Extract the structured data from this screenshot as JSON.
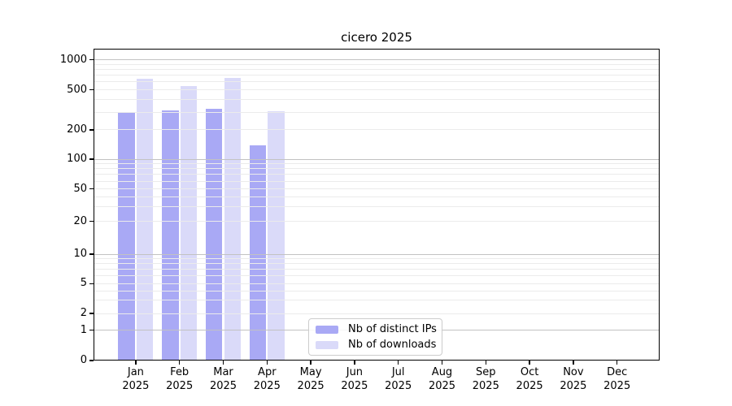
{
  "chart_data": {
    "type": "bar",
    "title": "cicero 2025",
    "categories": [
      "Jan 2025",
      "Feb 2025",
      "Mar 2025",
      "Apr 2025",
      "May 2025",
      "Jun 2025",
      "Jul 2025",
      "Aug 2025",
      "Sep 2025",
      "Oct 2025",
      "Nov 2025",
      "Dec 2025"
    ],
    "series": [
      {
        "name": "Nb of distinct IPs",
        "color": "#a9a9f5",
        "values": [
          300,
          310,
          325,
          138,
          0,
          0,
          0,
          0,
          0,
          0,
          0,
          0
        ]
      },
      {
        "name": "Nb of downloads",
        "color": "#dadaf9",
        "values": [
          650,
          550,
          660,
          305,
          0,
          0,
          0,
          0,
          0,
          0,
          0,
          0
        ]
      }
    ],
    "xlabel": "",
    "ylabel": "",
    "y_ticks": [
      0,
      1,
      2,
      5,
      10,
      20,
      50,
      100,
      200,
      500,
      1000
    ],
    "y_tick_labels": [
      "0",
      "1",
      "2",
      "5",
      "10",
      "20",
      "50",
      "100",
      "200",
      "500",
      "1000"
    ],
    "y_scale": "symlog",
    "ylim": [
      0,
      1300
    ],
    "grid": {
      "major": true,
      "minor": true
    },
    "legend_position": "lower center"
  },
  "colors": {
    "ips_bar": "#a9a9f5",
    "downloads_bar": "#dadaf9",
    "grid_major": "#c2c2c2",
    "grid_minor": "#ebebeb",
    "spine": "#000000",
    "legend_border": "#cccccc",
    "background": "#ffffff"
  }
}
